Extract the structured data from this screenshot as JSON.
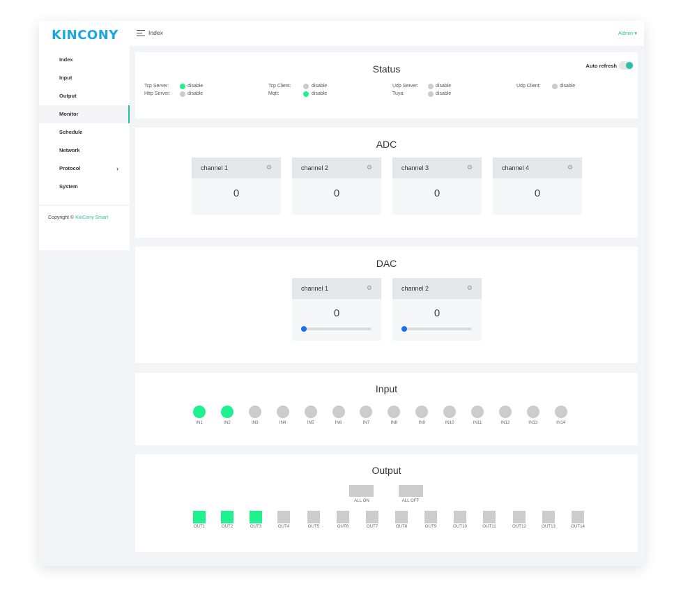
{
  "app": {
    "logo": "KINCONY",
    "accent": "#2bbfa6"
  },
  "sidebar": {
    "items": [
      {
        "label": "Index"
      },
      {
        "label": "Input"
      },
      {
        "label": "Output"
      },
      {
        "label": "Monitor",
        "active": true
      },
      {
        "label": "Schedule"
      },
      {
        "label": "Network"
      },
      {
        "label": "Protocol",
        "has_submenu": true
      },
      {
        "label": "System"
      }
    ],
    "copyright": "Copyright ©",
    "copyright_brand": "KinCony Smart"
  },
  "topbar": {
    "breadcrumb": "Index",
    "user": "Admin ▾"
  },
  "status": {
    "title": "Status",
    "auto_refresh_label": "Auto refresh",
    "auto_refresh": true,
    "items": [
      {
        "label": "Tcp Server:",
        "value": "disable",
        "color": "#1ef28f"
      },
      {
        "label": "Http Server:",
        "value": "disable",
        "color": "#cccccc"
      },
      {
        "label": "Tcp Client:",
        "value": "disable",
        "color": "#cccccc"
      },
      {
        "label": "Mqtt:",
        "value": "disable",
        "color": "#1ef28f"
      },
      {
        "label": "Udp Server:",
        "value": "disable",
        "color": "#cccccc"
      },
      {
        "label": "Tuya:",
        "value": "disable",
        "color": "#cccccc"
      },
      {
        "label": "Udp Client:",
        "value": "disable",
        "color": "#cccccc"
      }
    ]
  },
  "adc": {
    "title": "ADC",
    "channels": [
      {
        "name": "channel 1",
        "value": "0"
      },
      {
        "name": "channel 2",
        "value": "0"
      },
      {
        "name": "channel 3",
        "value": "0"
      },
      {
        "name": "channel 4",
        "value": "0"
      }
    ]
  },
  "dac": {
    "title": "DAC",
    "channels": [
      {
        "name": "channel 1",
        "value": "0",
        "level": 0
      },
      {
        "name": "channel 2",
        "value": "0",
        "level": 0
      }
    ]
  },
  "input": {
    "title": "Input",
    "items": [
      {
        "label": "IN1",
        "on": true
      },
      {
        "label": "IN2",
        "on": true
      },
      {
        "label": "IN3",
        "on": false
      },
      {
        "label": "IN4",
        "on": false
      },
      {
        "label": "IN5",
        "on": false
      },
      {
        "label": "IN6",
        "on": false
      },
      {
        "label": "IN7",
        "on": false
      },
      {
        "label": "IN8",
        "on": false
      },
      {
        "label": "IN9",
        "on": false
      },
      {
        "label": "IN10",
        "on": false
      },
      {
        "label": "IN11",
        "on": false
      },
      {
        "label": "IN12",
        "on": false
      },
      {
        "label": "IN13",
        "on": false
      },
      {
        "label": "IN14",
        "on": false
      }
    ]
  },
  "output": {
    "title": "Output",
    "all_on": "ALL ON",
    "all_off": "ALL OFF",
    "items": [
      {
        "label": "OUT1",
        "on": true
      },
      {
        "label": "OUT2",
        "on": true
      },
      {
        "label": "OUT3",
        "on": true
      },
      {
        "label": "OUT4",
        "on": false
      },
      {
        "label": "OUT5",
        "on": false
      },
      {
        "label": "OUT6",
        "on": false
      },
      {
        "label": "OUT7",
        "on": false
      },
      {
        "label": "OUT8",
        "on": false
      },
      {
        "label": "OUT9",
        "on": false
      },
      {
        "label": "OUT10",
        "on": false
      },
      {
        "label": "OUT11",
        "on": false
      },
      {
        "label": "OUT12",
        "on": false
      },
      {
        "label": "OUT13",
        "on": false
      },
      {
        "label": "OUT14",
        "on": false
      }
    ]
  }
}
